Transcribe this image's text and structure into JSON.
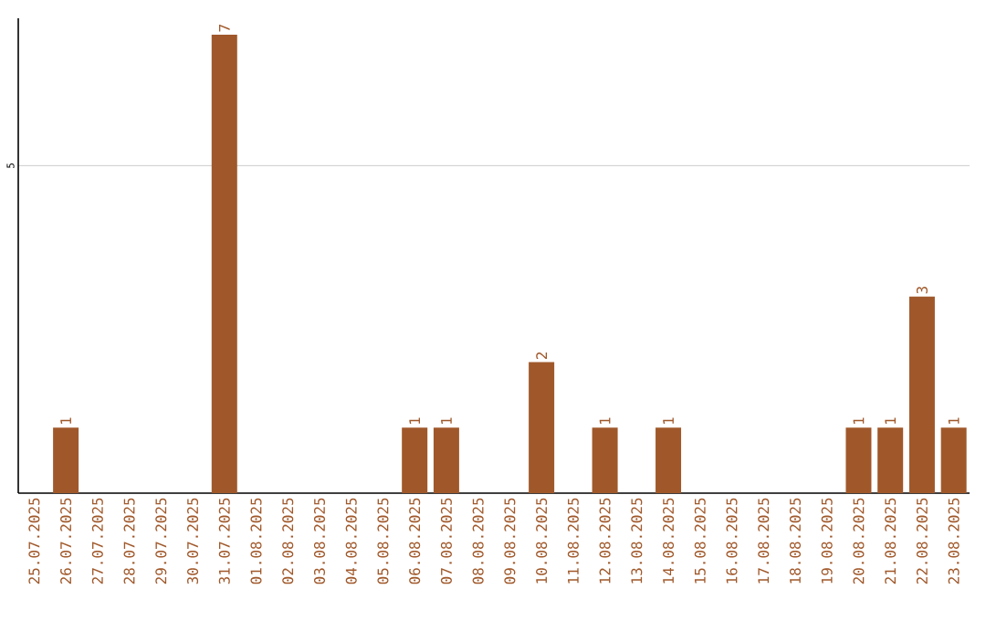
{
  "chart_data": {
    "type": "bar",
    "categories": [
      "25.07.2025",
      "26.07.2025",
      "27.07.2025",
      "28.07.2025",
      "29.07.2025",
      "30.07.2025",
      "31.07.2025",
      "01.08.2025",
      "02.08.2025",
      "03.08.2025",
      "04.08.2025",
      "05.08.2025",
      "06.08.2025",
      "07.08.2025",
      "08.08.2025",
      "09.08.2025",
      "10.08.2025",
      "11.08.2025",
      "12.08.2025",
      "13.08.2025",
      "14.08.2025",
      "15.08.2025",
      "16.08.2025",
      "17.08.2025",
      "18.08.2025",
      "19.08.2025",
      "20.08.2025",
      "21.08.2025",
      "22.08.2025",
      "23.08.2025"
    ],
    "values": [
      0,
      1,
      0,
      0,
      0,
      0,
      7,
      0,
      0,
      0,
      0,
      0,
      1,
      1,
      0,
      0,
      2,
      0,
      1,
      0,
      1,
      0,
      0,
      0,
      0,
      0,
      1,
      1,
      3,
      1
    ],
    "value_labels": [
      null,
      "1",
      null,
      null,
      null,
      null,
      "7",
      null,
      null,
      null,
      null,
      null,
      "1",
      "1",
      null,
      null,
      "2",
      null,
      "1",
      null,
      "1",
      null,
      null,
      null,
      null,
      null,
      "1",
      "1",
      "3",
      "1"
    ],
    "color": "#a0582a",
    "ylim": [
      0,
      7.25
    ],
    "yticks": [
      5
    ],
    "grid": "y"
  }
}
